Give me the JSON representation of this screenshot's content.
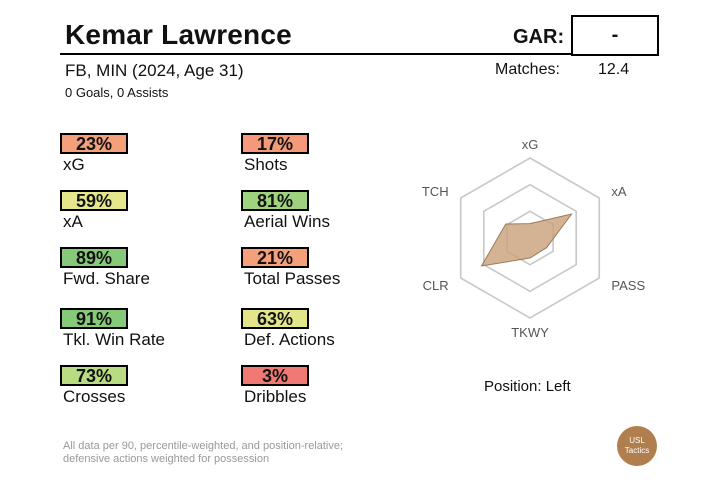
{
  "header": {
    "player_name": "Kemar Lawrence",
    "gar_label": "GAR:",
    "gar_value": "-",
    "subtitle": "FB, MIN (2024, Age 31)",
    "goals_assists": "0 Goals,  0 Assists",
    "matches_label": "Matches:",
    "matches_value": "12.4"
  },
  "stats": [
    {
      "value": "23%",
      "label": "xG",
      "color": "#f4a07a"
    },
    {
      "value": "17%",
      "label": "Shots",
      "color": "#f4997a"
    },
    {
      "value": "59%",
      "label": "xA",
      "color": "#e6e78c"
    },
    {
      "value": "81%",
      "label": "Aerial Wins",
      "color": "#9fd27e"
    },
    {
      "value": "89%",
      "label": "Fwd. Share",
      "color": "#86c978"
    },
    {
      "value": "21%",
      "label": "Total Passes",
      "color": "#f4a07a"
    },
    {
      "value": "91%",
      "label": "Tkl. Win Rate",
      "color": "#86c978"
    },
    {
      "value": "63%",
      "label": "Def. Actions",
      "color": "#e2e58a"
    },
    {
      "value": "73%",
      "label": "Crosses",
      "color": "#b9dc83"
    },
    {
      "value": "3%",
      "label": "Dribbles",
      "color": "#f07a73"
    }
  ],
  "radar": {
    "axes": [
      "xG",
      "xA",
      "PASS",
      "TKWY",
      "CLR",
      "TCH"
    ],
    "values": [
      0.18,
      0.6,
      0.24,
      0.25,
      0.7,
      0.35
    ],
    "fill_color": "#c9a07a",
    "stroke_color": "#9c7a5a",
    "grid_color": "#c8c8c8"
  },
  "position_text": "Position: Left",
  "footnote": {
    "line1": "All data per 90, percentile-weighted, and position-relative;",
    "line2": "defensive actions weighted for possession"
  },
  "logo": {
    "line1": "USL",
    "line2": "Tactics",
    "color": "#b07f4d"
  }
}
